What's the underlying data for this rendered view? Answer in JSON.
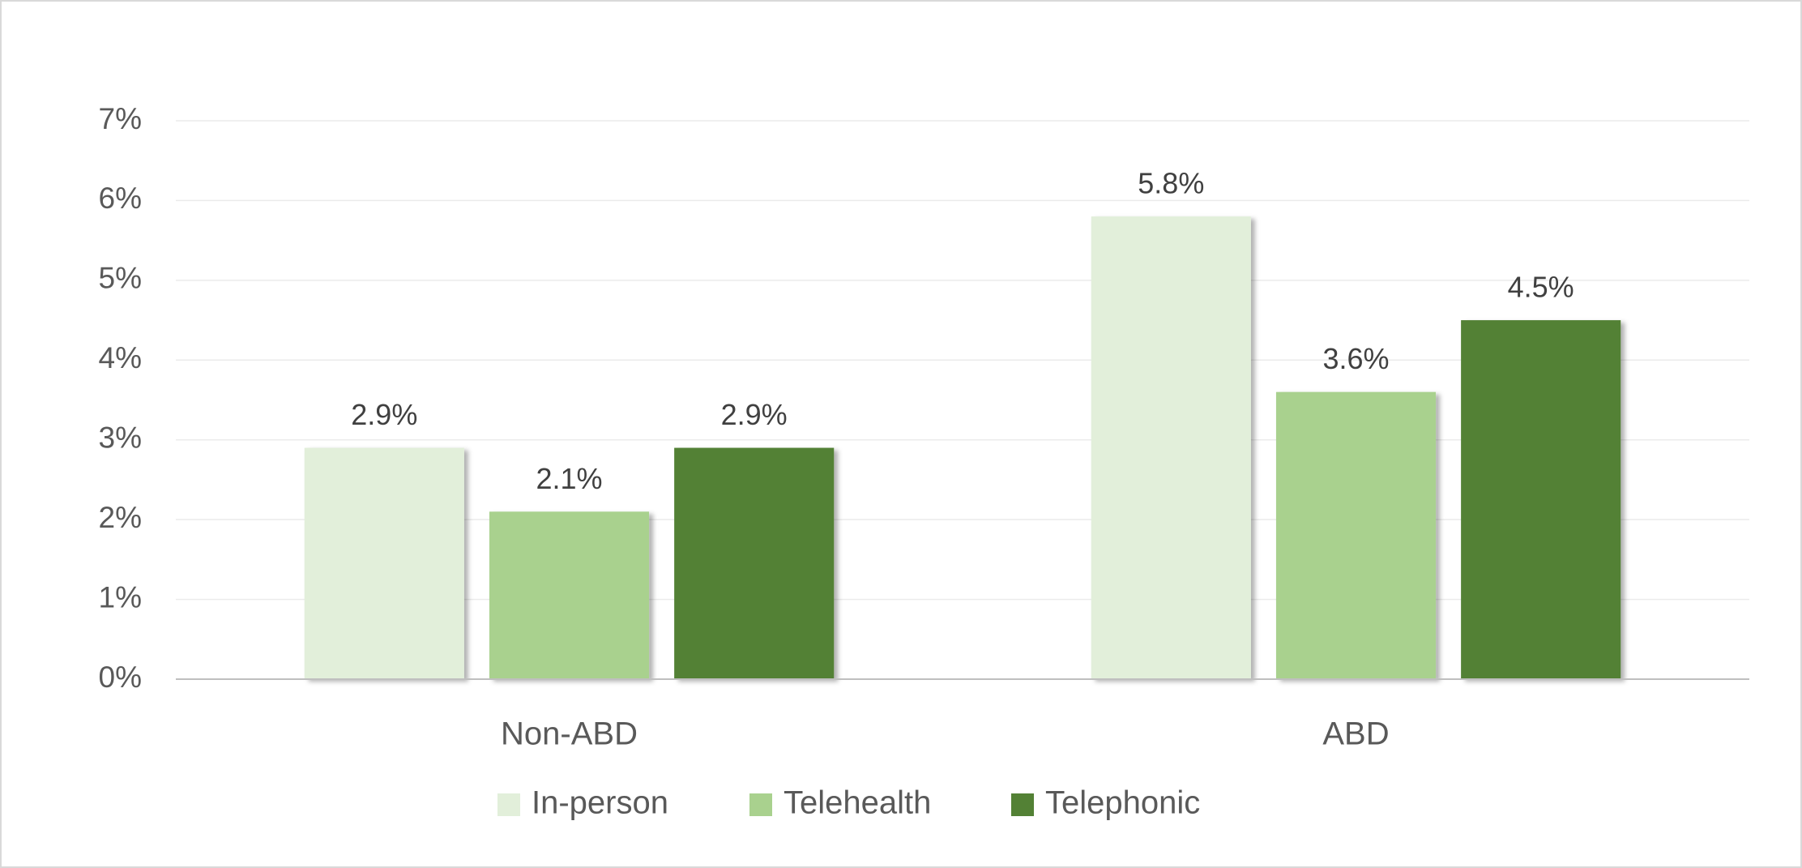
{
  "chart_data": {
    "type": "bar",
    "categories": [
      "Non-ABD",
      "ABD"
    ],
    "series": [
      {
        "name": "In-person",
        "color": "#e2efda",
        "values": [
          2.9,
          5.8
        ],
        "value_labels": [
          "2.9%",
          "5.8%"
        ]
      },
      {
        "name": "Telehealth",
        "color": "#a9d18e",
        "values": [
          2.1,
          3.6
        ],
        "value_labels": [
          "2.1%",
          "3.6%"
        ]
      },
      {
        "name": "Telephonic",
        "color": "#538135",
        "values": [
          2.9,
          4.5
        ],
        "value_labels": [
          "2.9%",
          "4.5%"
        ]
      }
    ],
    "ylim": [
      0,
      7
    ],
    "yticks": [
      {
        "value": 0,
        "label": "0%"
      },
      {
        "value": 1,
        "label": "1%"
      },
      {
        "value": 2,
        "label": "2%"
      },
      {
        "value": 3,
        "label": "3%"
      },
      {
        "value": 4,
        "label": "4%"
      },
      {
        "value": 5,
        "label": "5%"
      },
      {
        "value": 6,
        "label": "6%"
      },
      {
        "value": 7,
        "label": "7%"
      }
    ],
    "grid": true,
    "legend": "bottom"
  }
}
